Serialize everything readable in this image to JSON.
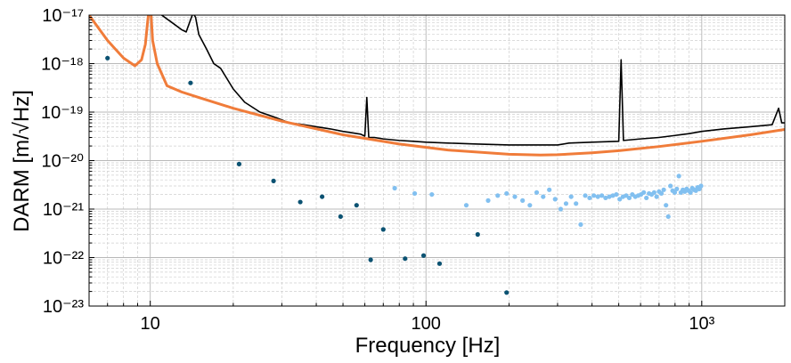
{
  "chart_data": {
    "type": "line",
    "xlabel": "Frequency [Hz]",
    "ylabel": "DARM [m/√Hz]",
    "x_scale": "log",
    "y_scale": "log",
    "xlim": [
      6,
      2000
    ],
    "ylim": [
      1e-23,
      1e-17
    ],
    "grid": true,
    "x_tick_labels": [
      {
        "value": 10,
        "label": "10"
      },
      {
        "value": 100,
        "label": "100"
      },
      {
        "value": 1000,
        "label": "10³"
      }
    ],
    "y_tick_labels": [
      {
        "value": 1e-17,
        "label": "10⁻¹⁷"
      },
      {
        "value": 1e-18,
        "label": "10⁻¹⁸"
      },
      {
        "value": 1e-19,
        "label": "10⁻¹⁹"
      },
      {
        "value": 1e-20,
        "label": "10⁻²⁰"
      },
      {
        "value": 1e-21,
        "label": "10⁻²¹"
      },
      {
        "value": 1e-22,
        "label": "10⁻²²"
      },
      {
        "value": 1e-23,
        "label": "10⁻²³"
      }
    ],
    "colors": {
      "measured": "#000000",
      "model": "#f07c3a",
      "dark_points": "#0b5272",
      "light_points": "#82c0f0"
    },
    "series": [
      {
        "style": "line",
        "color": "#000000",
        "x": [
          10.5,
          11,
          12,
          13,
          13.5,
          14,
          14.3,
          14.6,
          15,
          16,
          17,
          18,
          20,
          22,
          25,
          28,
          32,
          36,
          40,
          45,
          50,
          58,
          60,
          61,
          62,
          65,
          70,
          80,
          90,
          100,
          120,
          150,
          200,
          250,
          300,
          330,
          400,
          500,
          510,
          520,
          600,
          700,
          800,
          900,
          1000,
          1200,
          1500,
          1800,
          1900,
          1950,
          2000
        ],
        "y": [
          1.2e-17,
          1e-17,
          7e-18,
          5e-18,
          4.5e-18,
          8e-18,
          1.1e-17,
          9e-18,
          4e-18,
          2e-18,
          1e-18,
          8e-19,
          3e-19,
          1.6e-19,
          1e-19,
          8e-20,
          6e-20,
          5.5e-20,
          5e-20,
          4.5e-20,
          4e-20,
          3.5e-20,
          3.2e-20,
          2e-19,
          3e-20,
          3e-20,
          2.8e-20,
          2.6e-20,
          2.5e-20,
          2.4e-20,
          2.3e-20,
          2.2e-20,
          2.1e-20,
          2.1e-20,
          2.1e-20,
          2.3e-20,
          2.4e-20,
          2.5e-20,
          1.2e-18,
          2.6e-20,
          2.8e-20,
          3e-20,
          3.3e-20,
          3.6e-20,
          4e-20,
          4.5e-20,
          5e-20,
          5.5e-20,
          1.2e-19,
          6e-20,
          6e-20
        ]
      },
      {
        "style": "line",
        "color": "#f07c3a",
        "x": [
          6,
          7,
          8,
          8.8,
          9.3,
          9.6,
          9.8,
          10.0,
          10.2,
          10.6,
          11.5,
          13,
          15,
          20,
          30,
          50,
          80,
          120,
          200,
          260,
          300,
          400,
          500,
          700,
          1000,
          1500,
          2000
        ],
        "y": [
          1e-17,
          3e-18,
          1.3e-18,
          9e-19,
          1.2e-18,
          2.5e-18,
          8e-18,
          2e-17,
          3e-18,
          1e-18,
          3.5e-19,
          2.6e-19,
          2e-19,
          1.2e-19,
          6.5e-20,
          3.4e-20,
          2.2e-20,
          1.65e-20,
          1.35e-20,
          1.3e-20,
          1.32e-20,
          1.45e-20,
          1.6e-20,
          1.95e-20,
          2.5e-20,
          3.4e-20,
          4.4e-20
        ]
      },
      {
        "style": "scatter",
        "color": "#0b5272",
        "x": [
          7,
          14,
          21,
          28,
          35,
          42,
          49,
          56,
          70,
          63,
          84,
          98,
          112,
          154,
          196
        ],
        "y": [
          1.3e-18,
          4e-19,
          8.5e-21,
          3.8e-21,
          1.4e-21,
          1.8e-21,
          7e-22,
          1.2e-21,
          3.8e-22,
          9e-23,
          9.5e-23,
          1.1e-22,
          7.5e-23,
          3e-22,
          1.9e-23
        ]
      },
      {
        "style": "scatter",
        "color": "#82c0f0",
        "x": [
          77,
          91,
          105,
          140,
          168,
          182,
          196,
          210,
          224,
          238,
          252,
          266,
          280,
          294,
          308,
          322,
          336,
          350,
          364,
          378,
          392,
          406,
          420,
          434,
          448,
          462,
          476,
          490,
          504,
          518,
          532,
          546,
          560,
          574,
          588,
          602,
          616,
          630,
          644,
          658,
          672,
          686,
          700,
          714,
          728,
          742,
          756,
          770,
          784,
          798,
          812,
          826,
          840,
          854,
          868,
          882,
          896,
          910,
          924,
          938,
          952,
          966,
          980,
          994
        ],
        "y": [
          2.7e-21,
          2.1e-21,
          2e-21,
          1.2e-21,
          1.5e-21,
          1.9e-21,
          2.1e-21,
          1.8e-21,
          1.5e-21,
          1.2e-21,
          2.2e-21,
          1.8e-21,
          2.5e-21,
          1.6e-21,
          1e-21,
          1.3e-21,
          1.8e-21,
          1.3e-21,
          4.8e-22,
          1.9e-21,
          1.7e-21,
          1.9e-21,
          1.8e-21,
          1.9e-21,
          1.7e-21,
          1.8e-21,
          1.9e-21,
          2e-21,
          1.6e-21,
          1.8e-21,
          1.9e-21,
          1.7e-21,
          2e-21,
          1.8e-21,
          1.9e-21,
          2e-21,
          2.2e-21,
          1.7e-21,
          2.1e-21,
          2e-21,
          2.2e-21,
          1.8e-21,
          2.3e-21,
          2.1e-21,
          2.5e-21,
          1.2e-21,
          7e-22,
          3e-21,
          2.4e-21,
          2.2e-21,
          2.6e-21,
          4.8e-21,
          2.2e-21,
          2.5e-21,
          2.3e-21,
          2.6e-21,
          2.4e-21,
          2.2e-21,
          2.7e-21,
          2.5e-21,
          2.4e-21,
          2.8e-21,
          2.6e-21,
          3e-21
        ]
      }
    ]
  }
}
